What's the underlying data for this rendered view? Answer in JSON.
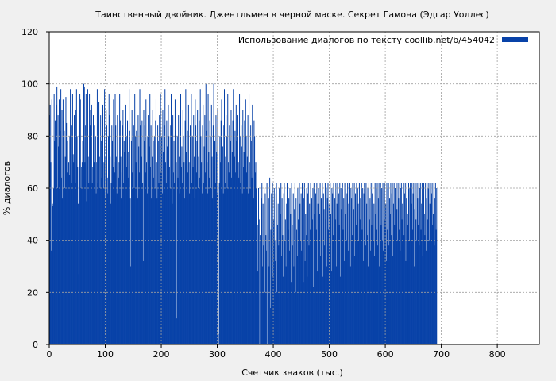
{
  "chart_data": {
    "type": "bar",
    "title": "Таинственный двойник. Джентльмен в черной маске. Секрет Гамона (Эдгар Уоллес)",
    "xlabel": "Счетчик знаков (тыс.)",
    "ylabel": "% диалогов",
    "xlim": [
      0,
      875
    ],
    "ylim": [
      0,
      120
    ],
    "xticks": [
      0,
      100,
      200,
      300,
      400,
      500,
      600,
      700,
      800
    ],
    "yticks": [
      0,
      20,
      40,
      60,
      80,
      100,
      120
    ],
    "grid": true,
    "legend_position": "top-right",
    "bar_color": "#0842a8",
    "series": [
      {
        "name": "Использование диалогов по тексту  coollib.net/b/454042",
        "bar_width": 1,
        "x_start": 0,
        "values": [
          88,
          92,
          70,
          36,
          94,
          54,
          53,
          60,
          96,
          78,
          86,
          82,
          92,
          99,
          60,
          88,
          76,
          94,
          68,
          82,
          98,
          64,
          90,
          56,
          94,
          86,
          82,
          60,
          72,
          95,
          85,
          66,
          78,
          56,
          70,
          65,
          80,
          98,
          84,
          62,
          84,
          96,
          73,
          70,
          88,
          72,
          62,
          90,
          98,
          80,
          68,
          54,
          27,
          90,
          96,
          94,
          60,
          68,
          70,
          78,
          86,
          100,
          99,
          70,
          84,
          96,
          55,
          64,
          98,
          72,
          62,
          96,
          84,
          90,
          78,
          92,
          62,
          68,
          88,
          70,
          84,
          60,
          80,
          58,
          70,
          98,
          62,
          80,
          93,
          72,
          60,
          88,
          78,
          64,
          80,
          92,
          60,
          70,
          98,
          56,
          72,
          90,
          84,
          64,
          58,
          80,
          96,
          88,
          72,
          54,
          62,
          84,
          78,
          68,
          94,
          70,
          66,
          96,
          84,
          72,
          58,
          88,
          80,
          64,
          70,
          96,
          86,
          72,
          56,
          66,
          84,
          90,
          62,
          78,
          74,
          60,
          92,
          80,
          68,
          86,
          74,
          64,
          98,
          82,
          56,
          30,
          78,
          90,
          66,
          72,
          84,
          60,
          96,
          80,
          70,
          82,
          62,
          56,
          88,
          76,
          66,
          98,
          84,
          60,
          72,
          86,
          62,
          32,
          90,
          78,
          84,
          66,
          94,
          70,
          58,
          80,
          88,
          62,
          76,
          96,
          68,
          84,
          56,
          72,
          90,
          78,
          64,
          80,
          60,
          86,
          94,
          70,
          56,
          84,
          78,
          62,
          88,
          70,
          96,
          66,
          80,
          58,
          90,
          74,
          64,
          84,
          98,
          70,
          62,
          86,
          76,
          58,
          92,
          80,
          68,
          60,
          84,
          96,
          72,
          54,
          88,
          66,
          78,
          62,
          94,
          82,
          70,
          10,
          80,
          64,
          88,
          72,
          58,
          84,
          96,
          68,
          76,
          62,
          90,
          80,
          70,
          56,
          86,
          98,
          74,
          60,
          82,
          66,
          92,
          70,
          58,
          84,
          76,
          96,
          62,
          80,
          68,
          88,
          72,
          56,
          94,
          84,
          66,
          78,
          90,
          60,
          72,
          86,
          64,
          98,
          80,
          70,
          58,
          84,
          92,
          62,
          76,
          88,
          66,
          100,
          82,
          70,
          58,
          96,
          74,
          64,
          86,
          80,
          60,
          92,
          72,
          56,
          84,
          100,
          68,
          78,
          62,
          88,
          74,
          58,
          90,
          4,
          0,
          62,
          80,
          70,
          86,
          94,
          66,
          76,
          58,
          84,
          98,
          62,
          72,
          88,
          80,
          60,
          96,
          70,
          66,
          84,
          56,
          78,
          90,
          64,
          74,
          86,
          98,
          60,
          72,
          82,
          66,
          92,
          78,
          58,
          88,
          70,
          64,
          96,
          80,
          62,
          84,
          76,
          58,
          90,
          68,
          74,
          86,
          62,
          94,
          80,
          66,
          72,
          88,
          58,
          96,
          70,
          60,
          84,
          78,
          64,
          92,
          74,
          56,
          86,
          80,
          66,
          70,
          60,
          54,
          46,
          28,
          60,
          48,
          0,
          42,
          34,
          56,
          62,
          30,
          54,
          38,
          60,
          20,
          58,
          42,
          36,
          62,
          0,
          50,
          56,
          30,
          64,
          14,
          44,
          58,
          36,
          62,
          26,
          48,
          60,
          40,
          32,
          58,
          62,
          20,
          46,
          54,
          38,
          60,
          14,
          50,
          62,
          34,
          56,
          42,
          26,
          58,
          62,
          40,
          48,
          30,
          54,
          62,
          18,
          44,
          56,
          36,
          60,
          50,
          24,
          62,
          46,
          38,
          58,
          30,
          52,
          62,
          20,
          56,
          44,
          34,
          60,
          48,
          28,
          62,
          54,
          40,
          58,
          36,
          62,
          46,
          24,
          56,
          62,
          32,
          50,
          42,
          60,
          26,
          58,
          62,
          38,
          54,
          44,
          62,
          30,
          56,
          48,
          60,
          22,
          62,
          50,
          36,
          58,
          44,
          62,
          28,
          54,
          60,
          40,
          50,
          62,
          34,
          56,
          46,
          62,
          26,
          58,
          52,
          38,
          62,
          48,
          60,
          30,
          56,
          62,
          44,
          54,
          36,
          62,
          50,
          28,
          60,
          58,
          42,
          62,
          34,
          56,
          48,
          62,
          30,
          54,
          62,
          40,
          58,
          46,
          62,
          26,
          60,
          52,
          38,
          62,
          44,
          56,
          32,
          62,
          50,
          60,
          40,
          58,
          62,
          36,
          54,
          48,
          62,
          30,
          60,
          56,
          42,
          62,
          38,
          52,
          62,
          34,
          58,
          46,
          62,
          28,
          60,
          54,
          40,
          62,
          48,
          56,
          36,
          62,
          44,
          60,
          32,
          58,
          62,
          50,
          38,
          62,
          54,
          42,
          60,
          30,
          62,
          48,
          56,
          36,
          62,
          46,
          58,
          62,
          40,
          54,
          34,
          62,
          50,
          60,
          44,
          62,
          38,
          56,
          62,
          30,
          52,
          62,
          46,
          60,
          40,
          62,
          36,
          58,
          62,
          48,
          54,
          32,
          62,
          44,
          60,
          62,
          38,
          56,
          50,
          62,
          42,
          58,
          62,
          34,
          54,
          62,
          46,
          60,
          30,
          62,
          52,
          40,
          62,
          56,
          44,
          62,
          36,
          60,
          62,
          48,
          54,
          38,
          62,
          42,
          58,
          62,
          32,
          56,
          62,
          50,
          46,
          62,
          40,
          60,
          62,
          36,
          54,
          62,
          44,
          58,
          62,
          30,
          52,
          62,
          48,
          40,
          62,
          56,
          46,
          62,
          38,
          60,
          62,
          44,
          54,
          62,
          34,
          58,
          62,
          50,
          42,
          62,
          36,
          56,
          62,
          48,
          60,
          62,
          40,
          54,
          62,
          32,
          58,
          62,
          46,
          50,
          62,
          38,
          56,
          62,
          44,
          60
        ]
      }
    ]
  }
}
